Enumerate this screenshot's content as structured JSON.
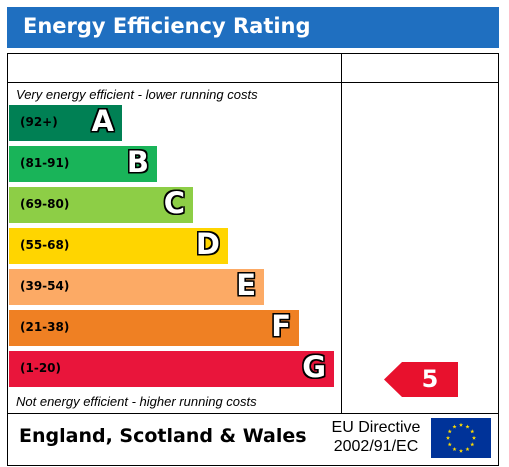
{
  "header": {
    "title": "Energy Efficiency Rating"
  },
  "captions": {
    "top": "Very energy efficient - lower running costs",
    "bottom": "Not energy efficient - higher running costs"
  },
  "bands": [
    {
      "range": "(92+)",
      "letter": "A",
      "color": "#008054"
    },
    {
      "range": "(81-91)",
      "letter": "B",
      "color": "#19b459"
    },
    {
      "range": "(69-80)",
      "letter": "C",
      "color": "#8dce46"
    },
    {
      "range": "(55-68)",
      "letter": "D",
      "color": "#ffd500"
    },
    {
      "range": "(39-54)",
      "letter": "E",
      "color": "#fcaa65"
    },
    {
      "range": "(21-38)",
      "letter": "F",
      "color": "#ef8023"
    },
    {
      "range": "(1-20)",
      "letter": "G",
      "color": "#e9153b"
    }
  ],
  "current_rating": {
    "value": "5",
    "band": "G",
    "color": "#e8112d"
  },
  "footer": {
    "region": "England, Scotland & Wales",
    "directive_line1": "EU Directive",
    "directive_line2": "2002/91/EC"
  }
}
